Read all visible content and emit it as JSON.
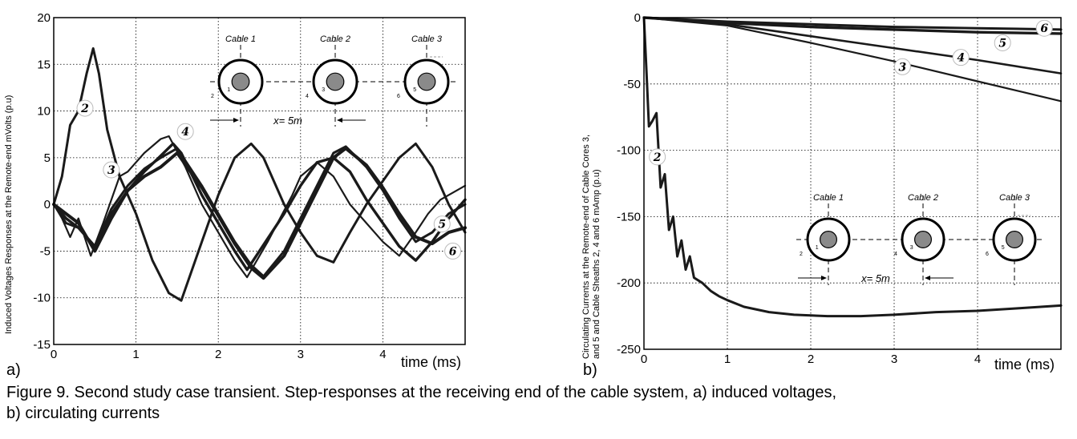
{
  "chart_data": [
    {
      "type": "line",
      "panel_label": "a)",
      "title": "",
      "xlabel": "time (ms)",
      "ylabel": "Induced Voltages Responses at the Remote-end mVolts (p.u)",
      "xlim": [
        0,
        5
      ],
      "ylim": [
        -15,
        20
      ],
      "xticks": [
        "0",
        "1",
        "2",
        "3",
        "4"
      ],
      "yticks": [
        "20",
        "15",
        "10",
        "5",
        "0",
        "-5",
        "-10",
        "-15"
      ],
      "grid": true,
      "series": [
        {
          "name": "2",
          "x": [
            0,
            0.1,
            0.2,
            0.3,
            0.4,
            0.48,
            0.55,
            0.65,
            0.8,
            1.0,
            1.2,
            1.4,
            1.55,
            1.8,
            2.0,
            2.2,
            2.4,
            2.55,
            2.8,
            3.0,
            3.2,
            3.4,
            3.6,
            3.8,
            4.0,
            4.2,
            4.4,
            4.6,
            4.8,
            5.0
          ],
          "y": [
            0,
            3,
            8.5,
            10,
            14,
            16.7,
            14,
            8,
            3,
            -1,
            -6,
            -9.5,
            -10.3,
            -4,
            1,
            5,
            6.5,
            5,
            0,
            -3,
            -5.5,
            -6.2,
            -3,
            0,
            2.5,
            5,
            6.5,
            4,
            0,
            -3
          ]
        },
        {
          "name": "3",
          "x": [
            0,
            0.1,
            0.2,
            0.3,
            0.45,
            0.6,
            0.8,
            0.9,
            1.1,
            1.3,
            1.4,
            1.6,
            1.8,
            2.0,
            2.2,
            2.35,
            2.6,
            2.9,
            3.0,
            3.2,
            3.4,
            3.6,
            3.8,
            4.0,
            4.2,
            4.4,
            4.55,
            4.7,
            5.0
          ],
          "y": [
            0,
            -1.5,
            -3.5,
            -1.5,
            -5.5,
            -2,
            3,
            3.5,
            5.5,
            7,
            7.3,
            4,
            0,
            -3,
            -6,
            -7.8,
            -4,
            1,
            3,
            4.5,
            3,
            0,
            -2,
            -4,
            -5.5,
            -3,
            -1,
            0.5,
            2
          ]
        },
        {
          "name": "4",
          "x": [
            0,
            0.15,
            0.3,
            0.5,
            0.7,
            0.9,
            1.1,
            1.3,
            1.45,
            1.55,
            1.8,
            2.0,
            2.2,
            2.35,
            2.5,
            2.8,
            3.0,
            3.2,
            3.4,
            3.6,
            3.8,
            4.0,
            4.2,
            4.4,
            4.6,
            4.8,
            5.0
          ],
          "y": [
            0,
            -1.5,
            -2.5,
            -4.5,
            -1,
            1.5,
            3.5,
            5.2,
            6.5,
            5.5,
            1,
            -2,
            -5,
            -7,
            -5,
            -1,
            2,
            4.5,
            5,
            3.5,
            0.5,
            -2,
            -4.5,
            -6,
            -4,
            -1.5,
            0.5
          ]
        },
        {
          "name": "5",
          "x": [
            0,
            0.15,
            0.3,
            0.5,
            0.7,
            0.9,
            1.1,
            1.3,
            1.5,
            1.8,
            2.0,
            2.2,
            2.4,
            2.55,
            2.8,
            3.0,
            3.2,
            3.4,
            3.55,
            3.8,
            4.0,
            4.2,
            4.4,
            4.6,
            4.8,
            5.0
          ],
          "y": [
            0,
            -2,
            -2.5,
            -4.5,
            -0.5,
            2,
            3.8,
            5,
            6,
            2,
            -1,
            -4,
            -6.5,
            -7.7,
            -5,
            -1.5,
            2,
            5.5,
            6.2,
            4,
            1.5,
            -1.5,
            -4,
            -3,
            -1,
            0
          ]
        },
        {
          "name": "6",
          "x": [
            0,
            0.15,
            0.3,
            0.5,
            0.7,
            0.9,
            1.1,
            1.3,
            1.5,
            1.8,
            2.0,
            2.2,
            2.4,
            2.55,
            2.8,
            3.0,
            3.2,
            3.4,
            3.55,
            3.8,
            4.0,
            4.2,
            4.4,
            4.6,
            4.8,
            5.0
          ],
          "y": [
            0,
            -1,
            -2,
            -5,
            -1.5,
            1.5,
            3,
            4,
            5.5,
            1.8,
            -1.2,
            -4.2,
            -6.8,
            -7.9,
            -5.5,
            -2,
            1.5,
            5,
            6,
            4.2,
            1.8,
            -1,
            -3.5,
            -4.2,
            -3,
            -2.5
          ]
        }
      ],
      "labels": [
        "2",
        "3",
        "4",
        "5",
        "6"
      ],
      "inset": {
        "cables": [
          "Cable 1",
          "Cable 2",
          "Cable 3"
        ],
        "core_numbers": [
          "1",
          "3",
          "5"
        ],
        "sheath_numbers": [
          "2",
          "4",
          "6"
        ],
        "spacing_label": "x= 5m"
      }
    },
    {
      "type": "line",
      "panel_label": "b)",
      "title": "",
      "xlabel": "time (ms)",
      "ylabel_lines": [
        "Circulating Currents at the Remote-end of Cable Cores 3,",
        "and 5 and Cable Sheaths 2, 4 and 6 mAmp (p.u)"
      ],
      "xlim": [
        0,
        5
      ],
      "ylim": [
        -250,
        0
      ],
      "xticks": [
        "0",
        "1",
        "2",
        "3",
        "4"
      ],
      "yticks": [
        "0",
        "-50",
        "-100",
        "-150",
        "-200",
        "-250"
      ],
      "grid": true,
      "series": [
        {
          "name": "2",
          "x": [
            0,
            0.03,
            0.06,
            0.1,
            0.15,
            0.2,
            0.25,
            0.3,
            0.35,
            0.4,
            0.45,
            0.5,
            0.55,
            0.6,
            0.7,
            0.8,
            0.9,
            1.0,
            1.2,
            1.5,
            1.8,
            2.2,
            2.6,
            3.0,
            3.5,
            4.0,
            4.5,
            5.0
          ],
          "y": [
            0,
            -40,
            -82,
            -78,
            -72,
            -128,
            -118,
            -160,
            -150,
            -180,
            -168,
            -190,
            -180,
            -196,
            -200,
            -206,
            -210,
            -213,
            -218,
            -222,
            -224,
            -225,
            -225,
            -224,
            -222,
            -221,
            -219,
            -217
          ]
        },
        {
          "name": "3",
          "x": [
            0,
            1,
            2,
            3,
            4,
            5
          ],
          "y": [
            0,
            -6,
            -19,
            -33,
            -48,
            -63
          ]
        },
        {
          "name": "4",
          "x": [
            0,
            1,
            2,
            3,
            4,
            5
          ],
          "y": [
            0,
            -5,
            -14,
            -23,
            -32,
            -42
          ]
        },
        {
          "name": "5",
          "x": [
            0,
            1,
            2,
            3,
            4,
            5
          ],
          "y": [
            0,
            -4,
            -7,
            -9,
            -11,
            -12
          ]
        },
        {
          "name": "6",
          "x": [
            0,
            1,
            2,
            3,
            4,
            5
          ],
          "y": [
            0,
            -3,
            -5,
            -7,
            -8,
            -9
          ]
        }
      ],
      "labels": [
        "2",
        "3",
        "4",
        "5",
        "6"
      ],
      "inset": {
        "cables": [
          "Cable 1",
          "Cable 2",
          "Cable 3"
        ],
        "core_numbers": [
          "1",
          "3",
          "5"
        ],
        "sheath_numbers": [
          "2",
          "4",
          "6"
        ],
        "spacing_label": "x= 5m"
      }
    }
  ],
  "caption": {
    "line1": "Figure 9.  Second study case transient. Step-responses at the receiving end of the cable system, a) induced voltages,",
    "line2": "b) circulating currents"
  }
}
